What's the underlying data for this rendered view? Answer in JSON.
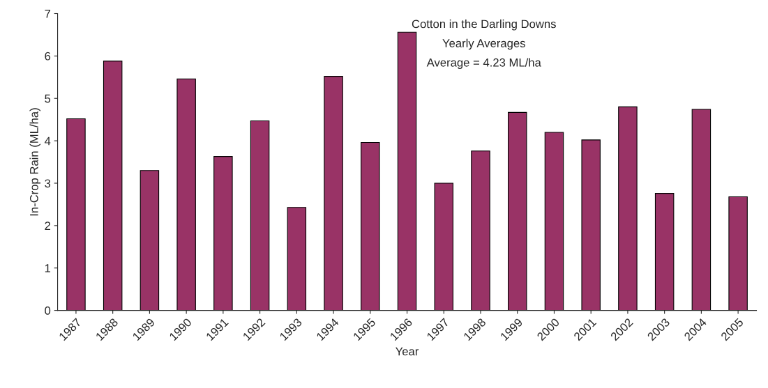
{
  "chart_data": {
    "type": "bar",
    "xlabel": "Year",
    "ylabel": "In-Crop Rain (ML/ha)",
    "categories": [
      "1987",
      "1988",
      "1989",
      "1990",
      "1991",
      "1992",
      "1993",
      "1994",
      "1995",
      "1996",
      "1997",
      "1998",
      "1999",
      "2000",
      "2001",
      "2002",
      "2003",
      "2004",
      "2005"
    ],
    "values": [
      4.52,
      5.88,
      3.3,
      5.46,
      3.63,
      4.47,
      2.43,
      5.52,
      3.96,
      6.56,
      3.0,
      3.76,
      4.67,
      4.2,
      4.02,
      4.8,
      2.76,
      4.74,
      2.68
    ],
    "color": "#993366",
    "ylim": [
      0,
      7
    ],
    "yticks": [
      0,
      1,
      2,
      3,
      4,
      5,
      6,
      7
    ],
    "grid": false,
    "legend": false,
    "annotations": [
      "Cotton in the Darling Downs",
      "Yearly Averages",
      "Average = 4.23 ML/ha"
    ]
  }
}
